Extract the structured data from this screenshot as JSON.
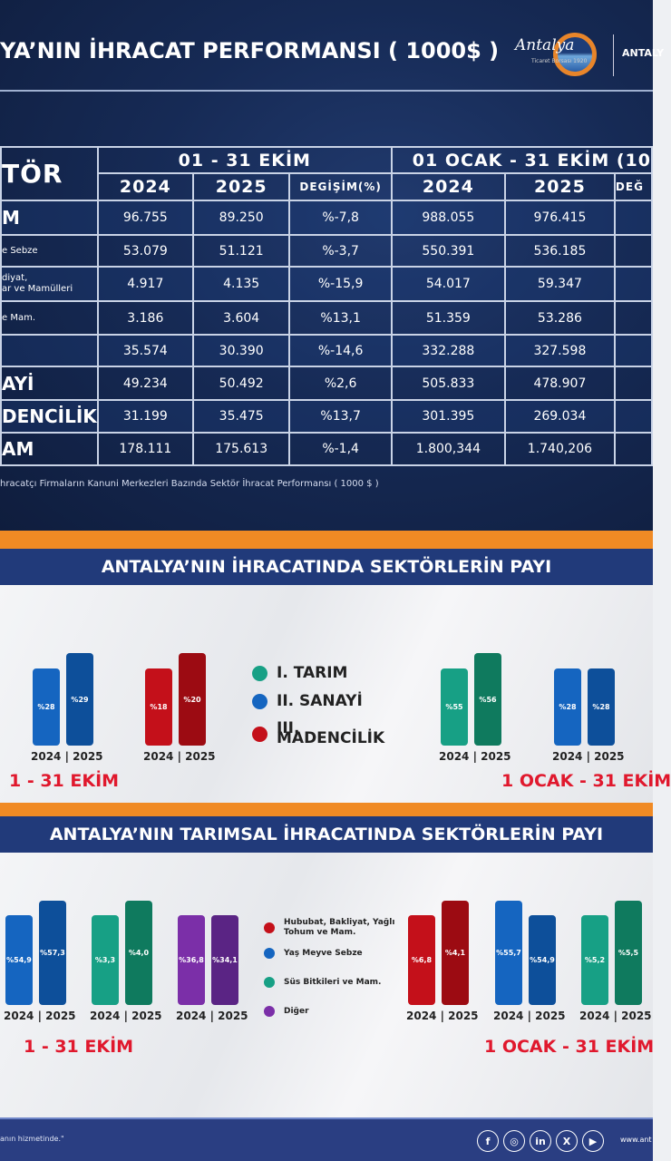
{
  "header": {
    "title": "YA’NIN İHRACAT PERFORMANSI ( 1000$ )",
    "logo_text": "Antalya",
    "logo_sub": "Ticaret Borsası 1920",
    "brand": "ANTALY"
  },
  "table": {
    "sector_header": "TÖR",
    "period1": "01 - 31 EKİM",
    "period2": "01 OCAK - 31 EKİM (10",
    "cols": [
      "2024",
      "2025",
      "DEGİŞİM(%)",
      "2024",
      "2025",
      "DEĞ"
    ],
    "rows": [
      {
        "label": "M",
        "v": [
          "96.755",
          "89.250",
          "%-7,8",
          "988.055",
          "976.415"
        ]
      },
      {
        "label": "e Sebze",
        "v": [
          "53.079",
          "51.121",
          "%-3,7",
          "550.391",
          "536.185"
        ]
      },
      {
        "label": "diyat,\nar ve Mamülleri",
        "v": [
          "4.917",
          "4.135",
          "%-15,9",
          "54.017",
          "59.347"
        ]
      },
      {
        "label": "e Mam.",
        "v": [
          "3.186",
          "3.604",
          "%13,1",
          "51.359",
          "53.286"
        ]
      },
      {
        "label": "",
        "v": [
          "35.574",
          "30.390",
          "%-14,6",
          "332.288",
          "327.598"
        ]
      },
      {
        "label": "AYİ",
        "v": [
          "49.234",
          "50.492",
          "%2,6",
          "505.833",
          "478.907"
        ]
      },
      {
        "label": "DENCİLİK",
        "v": [
          "31.199",
          "35.475",
          "%13,7",
          "301.395",
          "269.034"
        ]
      },
      {
        "label": "AM",
        "v": [
          "178.111",
          "175.613",
          "%-1,4",
          "1.800,344",
          "1.740,206"
        ]
      }
    ],
    "note": "hracatçı Firmaların Kanuni Merkezleri Bazında Sektör İhracat Performansı ( 1000 $ )"
  },
  "section1": {
    "title": "ANTALYA’NIN İHRACATINDA SEKTÖRLERİN PAYI",
    "groups": [
      {
        "v": [
          "%28",
          "%29"
        ],
        "years": "2024 | 2025"
      },
      {
        "v": [
          "%18",
          "%20"
        ],
        "years": "2024 | 2025"
      },
      {
        "v": [
          "%55",
          "%56"
        ],
        "years": "2024 | 2025"
      },
      {
        "v": [
          "%28",
          "%28"
        ],
        "years": "2024 | 2025"
      }
    ],
    "legend": [
      "I. TARIM",
      "II. SANAYİ",
      "III. MADENCİLİK"
    ],
    "period_left": "1 - 31 EKİM",
    "period_right": "1 OCAK - 31 EKİM"
  },
  "section2": {
    "title": "ANTALYA’NIN TARIMSAL İHRACATINDA SEKTÖRLERİN PAYI",
    "groups": [
      {
        "v": [
          "%54,9",
          "%57,3"
        ],
        "years": "2024 | 2025"
      },
      {
        "v": [
          "%3,3",
          "%4,0"
        ],
        "years": "2024 | 2025"
      },
      {
        "v": [
          "%36,8",
          "%34,1"
        ],
        "years": "2024 | 2025"
      },
      {
        "v": [
          "%6,8",
          "%4,1"
        ],
        "years": "2024 | 2025"
      },
      {
        "v": [
          "%55,7",
          "%54,9"
        ],
        "years": "2024 | 2025"
      },
      {
        "v": [
          "%5,2",
          "%5,5"
        ],
        "years": "2024 | 2025"
      }
    ],
    "legend": [
      "Hububat, Bakliyat, Yağlı Tohum ve Mam.",
      "Yaş Meyve Sebze",
      "Süs Bitkileri ve Mam.",
      "Diğer"
    ],
    "period_left": "1 - 31 EKİM",
    "period_right": "1 OCAK - 31 EKİM"
  },
  "colors": {
    "blue": "#1565c0",
    "red": "#c4101a",
    "green": "#17a085",
    "purple": "#7b2fa8",
    "orange": "#f08a24",
    "navy": "#213a7a"
  },
  "footer": {
    "slogan": "anın hizmetinde.\"",
    "social": [
      "facebook-icon",
      "instagram-icon",
      "linkedin-icon",
      "x-icon",
      "youtube-icon"
    ],
    "website": "www.ant"
  }
}
